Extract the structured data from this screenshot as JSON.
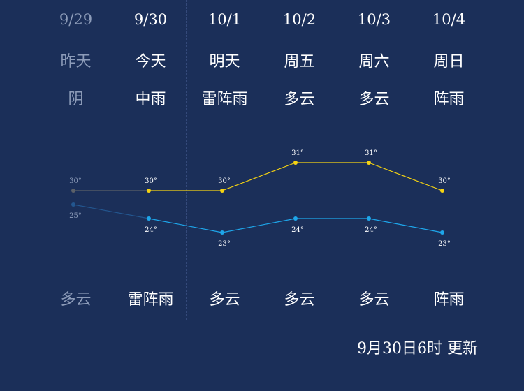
{
  "days": [
    {
      "date": "9/29",
      "label": "昨天",
      "weather_day": "阴",
      "weather_night": "多云",
      "high": 30,
      "low": 25,
      "high_label": "30°",
      "low_label": "25°",
      "past": true
    },
    {
      "date": "9/30",
      "label": "今天",
      "weather_day": "中雨",
      "weather_night": "雷阵雨",
      "high": 30,
      "low": 24,
      "high_label": "30°",
      "low_label": "24°",
      "past": false
    },
    {
      "date": "10/1",
      "label": "明天",
      "weather_day": "雷阵雨",
      "weather_night": "多云",
      "high": 30,
      "low": 23,
      "high_label": "30°",
      "low_label": "23°",
      "past": false
    },
    {
      "date": "10/2",
      "label": "周五",
      "weather_day": "多云",
      "weather_night": "多云",
      "high": 31,
      "low": 24,
      "high_label": "31°",
      "low_label": "24°",
      "past": false
    },
    {
      "date": "10/3",
      "label": "周六",
      "weather_day": "多云",
      "weather_night": "多云",
      "high": 31,
      "low": 24,
      "high_label": "31°",
      "low_label": "24°",
      "past": false
    },
    {
      "date": "10/4",
      "label": "周日",
      "weather_day": "阵雨",
      "weather_night": "阵雨",
      "high": 30,
      "low": 23,
      "high_label": "30°",
      "low_label": "23°",
      "past": false
    }
  ],
  "update_text": "9月30日6时 更新",
  "colors": {
    "background": "#1b2f59",
    "high_line": "#f5d312",
    "low_line": "#1ea6ea",
    "past_high_line": "#5b6068",
    "past_low_line": "#23568f"
  }
}
